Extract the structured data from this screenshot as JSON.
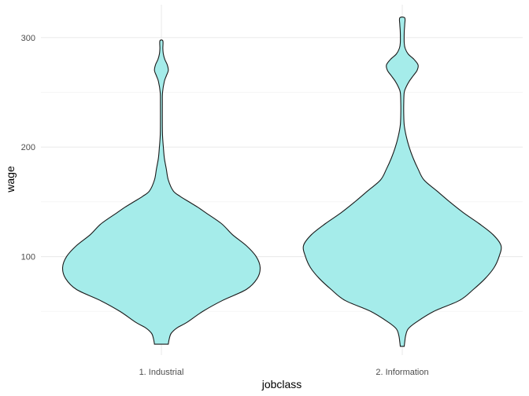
{
  "chart_data": {
    "type": "violin",
    "title": "",
    "xlabel": "jobclass",
    "ylabel": "wage",
    "categories": [
      "1. Industrial",
      "2. Information"
    ],
    "ylim": [
      10,
      330
    ],
    "yticks": [
      100,
      200,
      300
    ],
    "grid": true,
    "fill_color": "#a5ecea",
    "outline_color": "#1a1a1a",
    "series": [
      {
        "category": "1. Industrial",
        "min": 20,
        "max": 297,
        "profile": [
          [
            20,
            0.07
          ],
          [
            25,
            0.08
          ],
          [
            30,
            0.1
          ],
          [
            35,
            0.16
          ],
          [
            40,
            0.26
          ],
          [
            50,
            0.42
          ],
          [
            60,
            0.62
          ],
          [
            70,
            0.86
          ],
          [
            80,
            0.97
          ],
          [
            90,
            1.0
          ],
          [
            100,
            0.96
          ],
          [
            110,
            0.86
          ],
          [
            120,
            0.72
          ],
          [
            130,
            0.61
          ],
          [
            140,
            0.45
          ],
          [
            145,
            0.37
          ],
          [
            150,
            0.28
          ],
          [
            155,
            0.19
          ],
          [
            160,
            0.12
          ],
          [
            170,
            0.07
          ],
          [
            180,
            0.05
          ],
          [
            190,
            0.03
          ],
          [
            200,
            0.02
          ],
          [
            210,
            0.012
          ],
          [
            220,
            0.01
          ],
          [
            240,
            0.01
          ],
          [
            250,
            0.012
          ],
          [
            260,
            0.03
          ],
          [
            265,
            0.05
          ],
          [
            270,
            0.07
          ],
          [
            275,
            0.06
          ],
          [
            280,
            0.035
          ],
          [
            285,
            0.02
          ],
          [
            290,
            0.015
          ],
          [
            297,
            0.015
          ]
        ]
      },
      {
        "category": "2. Information",
        "min": 18,
        "max": 318,
        "profile": [
          [
            18,
            0.02
          ],
          [
            22,
            0.025
          ],
          [
            28,
            0.035
          ],
          [
            34,
            0.06
          ],
          [
            40,
            0.14
          ],
          [
            50,
            0.32
          ],
          [
            60,
            0.58
          ],
          [
            70,
            0.72
          ],
          [
            80,
            0.84
          ],
          [
            90,
            0.93
          ],
          [
            100,
            0.98
          ],
          [
            110,
            1.0
          ],
          [
            120,
            0.92
          ],
          [
            130,
            0.78
          ],
          [
            140,
            0.62
          ],
          [
            150,
            0.48
          ],
          [
            160,
            0.35
          ],
          [
            170,
            0.22
          ],
          [
            180,
            0.16
          ],
          [
            190,
            0.11
          ],
          [
            200,
            0.07
          ],
          [
            210,
            0.04
          ],
          [
            220,
            0.02
          ],
          [
            230,
            0.015
          ],
          [
            240,
            0.015
          ],
          [
            250,
            0.02
          ],
          [
            255,
            0.04
          ],
          [
            260,
            0.07
          ],
          [
            265,
            0.11
          ],
          [
            270,
            0.15
          ],
          [
            275,
            0.16
          ],
          [
            280,
            0.12
          ],
          [
            285,
            0.06
          ],
          [
            290,
            0.03
          ],
          [
            295,
            0.02
          ],
          [
            305,
            0.02
          ],
          [
            312,
            0.025
          ],
          [
            318,
            0.025
          ]
        ]
      }
    ]
  }
}
